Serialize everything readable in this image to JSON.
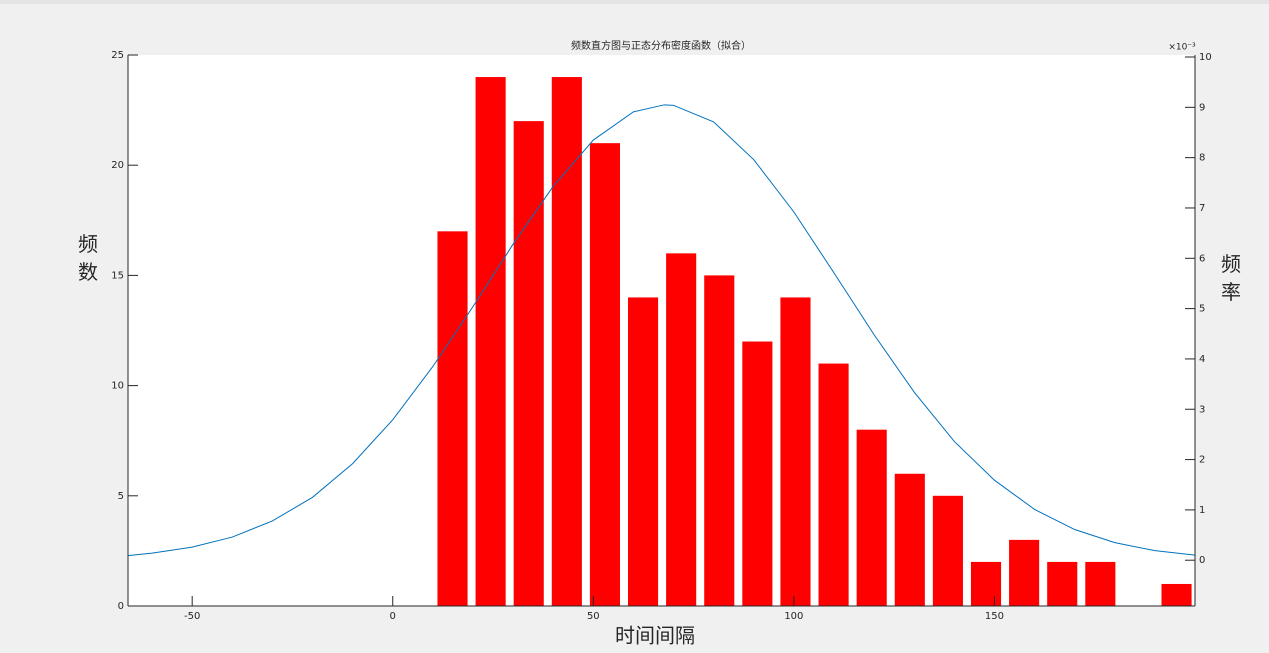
{
  "chart_data": {
    "type": "bar",
    "title": "频数直方图与正态分布密度函数（拟合）",
    "xlabel": "时间间隔",
    "ylabel": "频\n数",
    "y2label": "频\n率",
    "y2_multiplier": "×10⁻³",
    "xlim": [
      -66,
      200
    ],
    "xticks": [
      -50,
      0,
      50,
      100,
      150
    ],
    "ylim": [
      0,
      25
    ],
    "yticks": [
      0,
      5,
      10,
      15,
      20,
      25
    ],
    "y2lim": [
      -0.91,
      10.04
    ],
    "y2ticks": [
      0,
      1,
      2,
      3,
      4,
      5,
      6,
      7,
      8,
      9,
      10
    ],
    "series": [
      {
        "type": "bar",
        "color": "#ff0000",
        "x": [
          14.9,
          24.4,
          33.9,
          43.4,
          52.9,
          62.4,
          71.9,
          81.4,
          90.9,
          100.4,
          109.9,
          119.4,
          128.9,
          138.4,
          147.9,
          157.4,
          166.9,
          176.4,
          185.9,
          195.4
        ],
        "values": [
          17,
          24,
          22,
          24,
          21,
          14,
          16,
          15,
          12,
          14,
          11,
          8,
          6,
          5,
          2,
          3,
          2,
          2,
          0,
          1
        ]
      },
      {
        "type": "line",
        "axis": "y2",
        "color": "#0072bd",
        "x": [
          -66,
          -60,
          -50,
          -40,
          -30,
          -20,
          -10,
          0,
          10,
          20,
          30,
          40,
          50,
          60,
          67.7,
          70,
          80,
          90,
          100,
          110,
          120,
          130,
          140,
          150,
          160,
          170,
          180,
          190,
          200
        ],
        "values": [
          0.09,
          0.14,
          0.26,
          0.46,
          0.78,
          1.25,
          1.92,
          2.79,
          3.85,
          5.04,
          6.28,
          7.43,
          8.35,
          8.91,
          9.05,
          9.04,
          8.71,
          7.96,
          6.92,
          5.71,
          4.48,
          3.34,
          2.36,
          1.59,
          1.01,
          0.61,
          0.35,
          0.19,
          0.1
        ]
      }
    ]
  }
}
